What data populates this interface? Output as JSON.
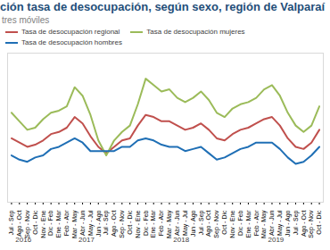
{
  "chart_data": {
    "type": "line",
    "title": "ción tasa de desocupación, según sexo, región de Valparaí",
    "subtitle": "tres móviles",
    "categories": [
      "Jul - Sep",
      "Ago - Oct",
      "Sep - Nov",
      "Oct - Dic",
      "Nov - Ene",
      "Dic - Feb",
      "Ene - Mar",
      "Feb - Abr",
      "Mar - May",
      "Abr - Jun",
      "May - Jul",
      "Jun - Ago",
      "Jul - Sep",
      "Ago - Oct",
      "Sep - Nov",
      "Oct - Dic",
      "Nov - Ene",
      "Dic - Feb",
      "Ene - Mar",
      "Feb - Abr",
      "Mar - May",
      "Abr - Jun",
      "May - Jul",
      "Jun - Ago",
      "Jul - Sep",
      "Ago - Oct",
      "Sep - Nov",
      "Oct - Dic",
      "Nov - Ene",
      "Dic - Feb",
      "Ene - Mar",
      "Feb - Abr",
      "Mar - May",
      "Abr - Jun",
      "May - Jul",
      "Jun - Ago",
      "Jul - Sep",
      "Ago - Oct",
      "Sep - Nov",
      "Oct - Dic"
    ],
    "years": [
      "2016",
      "2016",
      "2016",
      "2016",
      "2017",
      "2017",
      "2017",
      "2017",
      "2017",
      "2017",
      "2017",
      "2017",
      "2017",
      "2017",
      "2017",
      "2017",
      "2018",
      "2018",
      "2018",
      "2018",
      "2018",
      "2018",
      "2018",
      "2018",
      "2018",
      "2018",
      "2018",
      "2018",
      "2019",
      "2019",
      "2019",
      "2019",
      "2019",
      "2019",
      "2019",
      "2019",
      "2019",
      "2019",
      "2019",
      "2019"
    ],
    "series": [
      {
        "name": "Tasa de desocupación regional",
        "color": "#c0504d",
        "values": [
          7.0,
          6.8,
          6.6,
          6.7,
          6.9,
          7.2,
          7.3,
          7.5,
          8.0,
          7.7,
          7.1,
          6.6,
          6.3,
          6.6,
          6.9,
          7.0,
          7.6,
          8.1,
          8.0,
          7.8,
          7.8,
          7.6,
          7.4,
          7.5,
          7.7,
          7.4,
          7.0,
          6.9,
          7.2,
          7.4,
          7.5,
          7.7,
          7.9,
          8.0,
          7.6,
          7.0,
          6.6,
          6.5,
          6.8,
          7.4
        ]
      },
      {
        "name": "Tasa de desocupación mujeres",
        "color": "#9bbb59",
        "values": [
          8.2,
          7.8,
          7.4,
          7.5,
          7.9,
          8.2,
          8.3,
          8.5,
          9.4,
          9.0,
          8.1,
          6.9,
          6.2,
          6.9,
          7.3,
          7.6,
          8.6,
          9.8,
          9.5,
          9.2,
          9.3,
          8.9,
          8.7,
          8.9,
          9.2,
          8.8,
          8.2,
          8.0,
          8.4,
          8.6,
          8.7,
          8.9,
          9.3,
          9.5,
          9.0,
          8.2,
          7.6,
          7.3,
          7.6,
          8.5
        ]
      },
      {
        "name": "Tasa de desocupación hombres",
        "color": "#1f6fb5",
        "values": [
          6.2,
          6.0,
          5.9,
          6.1,
          6.2,
          6.5,
          6.6,
          6.8,
          7.0,
          6.8,
          6.4,
          6.4,
          6.4,
          6.4,
          6.6,
          6.6,
          6.9,
          7.0,
          6.9,
          6.7,
          6.6,
          6.6,
          6.4,
          6.5,
          6.6,
          6.3,
          6.0,
          6.1,
          6.3,
          6.5,
          6.6,
          6.8,
          6.8,
          6.8,
          6.5,
          6.1,
          5.8,
          5.9,
          6.2,
          6.6
        ]
      }
    ],
    "ylim": [
      4,
      11
    ],
    "yticks": [],
    "tick_labels": "x",
    "grid": false,
    "legend": "top"
  }
}
